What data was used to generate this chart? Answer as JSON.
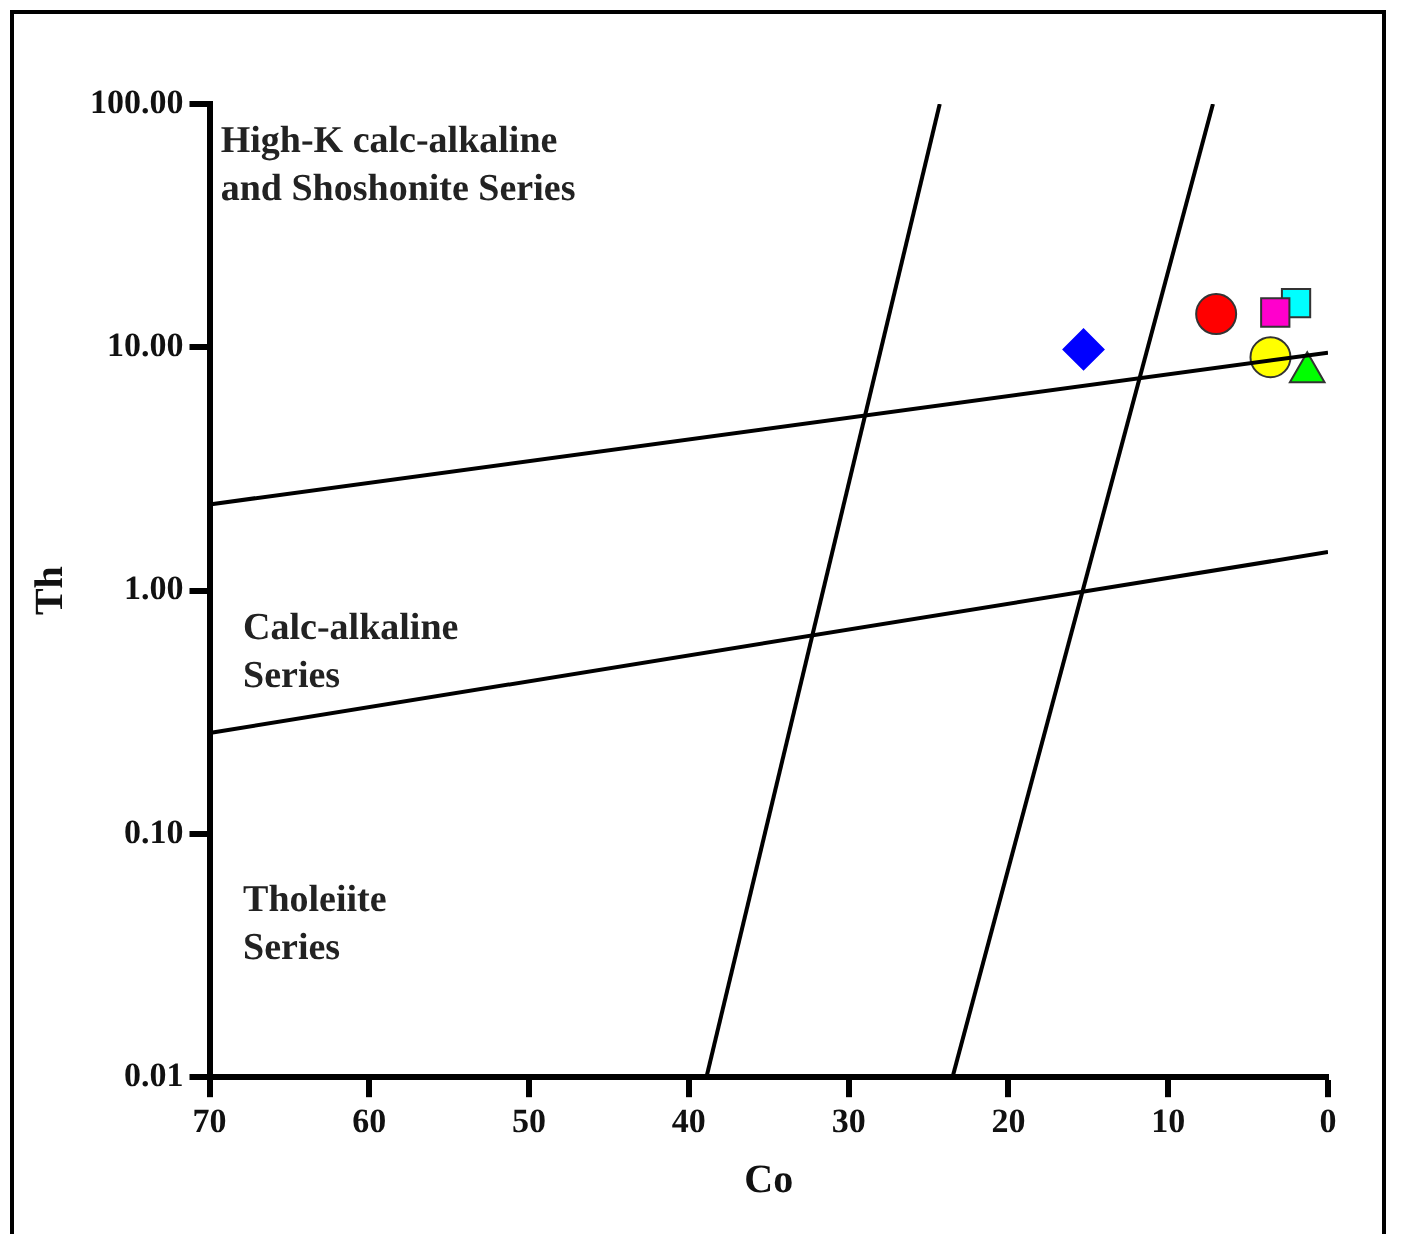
{
  "chart_data": {
    "type": "scatter",
    "xlabel": "Co",
    "ylabel": "Th",
    "xlim": [
      70,
      0
    ],
    "ylim": [
      0.01,
      100
    ],
    "log": "y",
    "grid": false,
    "legend": false,
    "xticks": [
      70,
      60,
      50,
      40,
      30,
      20,
      10,
      0
    ],
    "yticks": [
      {
        "value": 0.01,
        "label": "0.01"
      },
      {
        "value": 0.1,
        "label": "0.10"
      },
      {
        "value": 1,
        "label": "1.00"
      },
      {
        "value": 10,
        "label": "10.00"
      },
      {
        "value": 100,
        "label": "100.00"
      }
    ],
    "annotations": [
      "High-K calc-alkaline\nand Shoshonite Series",
      "Calc-alkaline\nSeries",
      "Tholeiite\nSeries"
    ],
    "series": [
      {
        "type": "line",
        "color": "#000000",
        "marker": "none",
        "x": [
          70,
          0
        ],
        "values": [
          2.26,
          9.5
        ]
      },
      {
        "type": "line",
        "color": "#000000",
        "marker": "none",
        "x": [
          70,
          0
        ],
        "values": [
          0.26,
          1.44
        ]
      },
      {
        "type": "line",
        "color": "#000000",
        "marker": "none",
        "x": [
          38.9,
          24.3
        ],
        "values": [
          0.01,
          100
        ]
      },
      {
        "type": "line",
        "color": "#000000",
        "marker": "none",
        "x": [
          23.5,
          7.2
        ],
        "values": [
          0.01,
          100
        ]
      },
      {
        "color": "#0000ff",
        "marker": "diamond",
        "x": [
          15.3
        ],
        "values": [
          9.8
        ]
      },
      {
        "color": "#ff0000",
        "marker": "circle",
        "x": [
          7.0
        ],
        "values": [
          13.7
        ]
      },
      {
        "color": "#ff00cc",
        "marker": "square",
        "x": [
          3.3
        ],
        "values": [
          13.9
        ]
      },
      {
        "color": "#00ffff",
        "marker": "square",
        "x": [
          2.0
        ],
        "values": [
          15.2
        ]
      },
      {
        "color": "#ffff00",
        "marker": "circle",
        "x": [
          3.6
        ],
        "values": [
          9.1
        ]
      },
      {
        "color": "#00ff00",
        "marker": "triangle",
        "x": [
          1.3
        ],
        "values": [
          7.9
        ]
      }
    ]
  }
}
